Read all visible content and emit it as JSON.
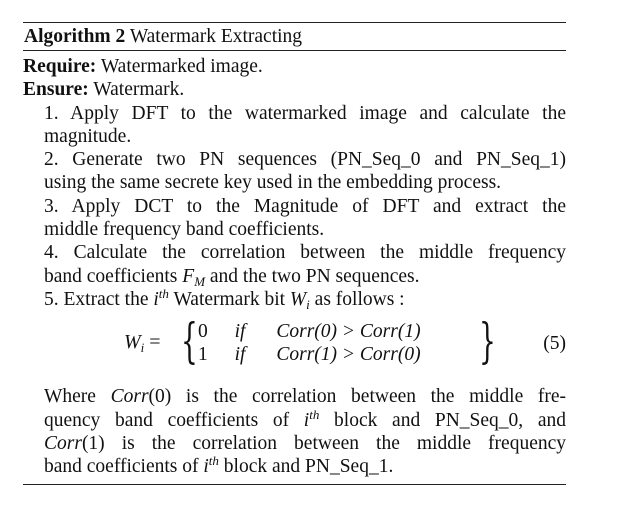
{
  "algorithm": {
    "label": "Algorithm 2",
    "title": "Watermark Extracting"
  },
  "require": {
    "keyword": "Require:",
    "text": "Watermarked image."
  },
  "ensure": {
    "keyword": "Ensure:",
    "text": "Watermark."
  },
  "steps": {
    "s1a": "1. Apply DFT to the watermarked image and calculate the",
    "s1b": "magnitude.",
    "s2a": "2. Generate two PN sequences (PN_Seq_0 and PN_Seq_1)",
    "s2b": "using the same secrete key used in the embedding process.",
    "s3a": "3. Apply DCT to the Magnitude of DFT and extract the",
    "s3b": "middle frequency band coefficients.",
    "s4a": "4. Calculate the correlation between the middle frequency",
    "s4b_pre": "band coefficients",
    "s4b_var": "F",
    "s4b_sub": "M",
    "s4b_post": "and the two PN sequences.",
    "s5_pre": "5. Extract the",
    "s5_i": "i",
    "s5_th": "th",
    "s5_mid": "Watermark bit",
    "s5_W": "W",
    "s5_Wsub": "i",
    "s5_post": "as follows :"
  },
  "equation": {
    "lhs_W": "W",
    "lhs_sub": "i",
    "eq": "=",
    "case1_val": "0",
    "case1_if": "if",
    "case1_cond": "Corr(0) > Corr(1)",
    "case2_val": "1",
    "case2_if": "if",
    "case2_cond": "Corr(1) > Corr(0)",
    "number": "(5)"
  },
  "explanation": {
    "l1_pre": "Where",
    "l1_corr": "Corr",
    "l1_arg": "(0)",
    "l1_post": "is the correlation between the middle fre-",
    "l2_pre": "quency band coefficients of",
    "l2_i": "i",
    "l2_th": "th",
    "l2_post": "block and PN_Seq_0, and",
    "l3_corr": "Corr",
    "l3_arg": "(1)",
    "l3_post": "is the correlation between the middle frequency",
    "l4_pre": "band coefficients of",
    "l4_i": "i",
    "l4_th": "th",
    "l4_post": "block and PN_Seq_1."
  }
}
